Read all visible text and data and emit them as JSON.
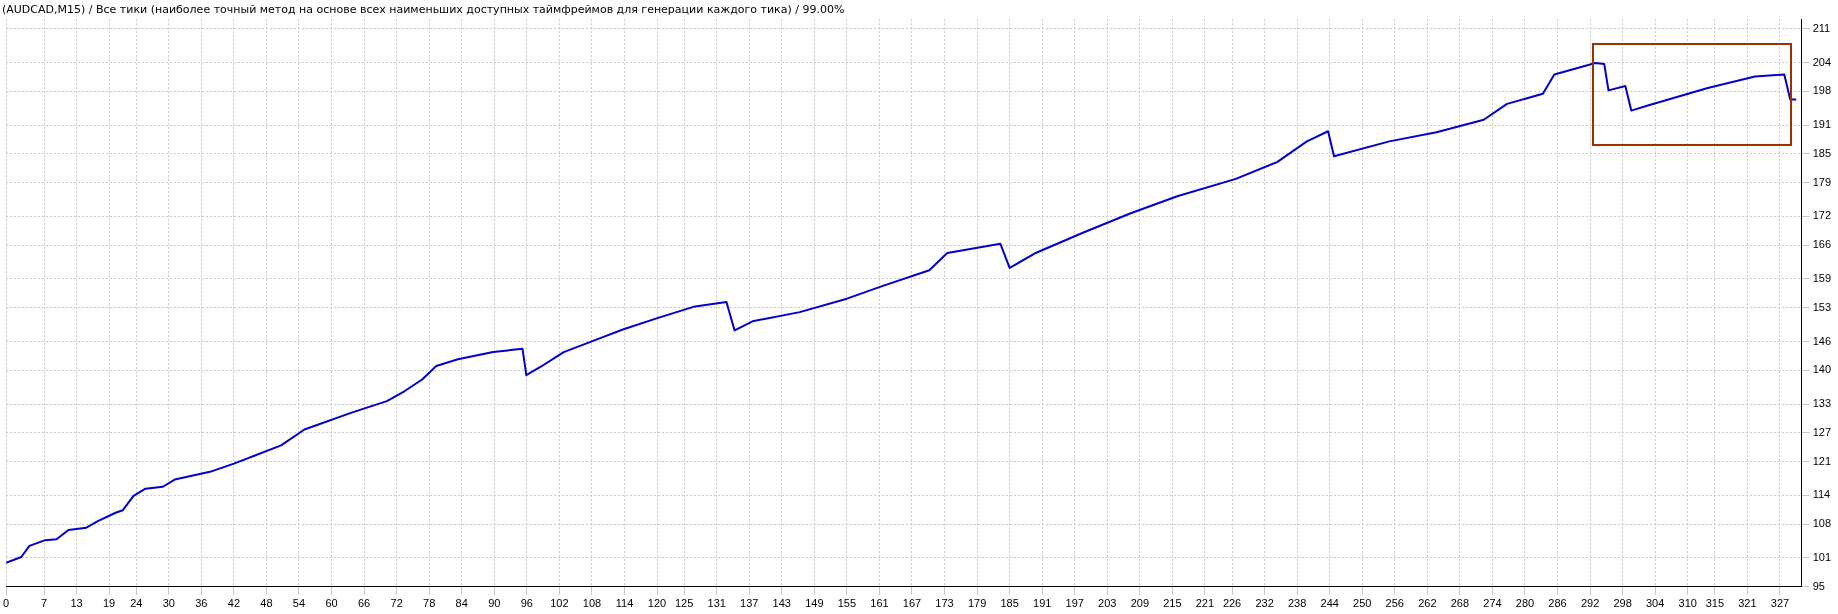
{
  "chart_data": {
    "type": "line",
    "title": "(AUDCAD,M15) / Все тики (наиболее точный метод на основе всех наименьших доступных таймфреймов для генерации каждого тика) / 99.00%",
    "series": [
      {
        "color": "#0000cc",
        "x": [
          0,
          2.8,
          4.3,
          7.2,
          9.3,
          11.5,
          14.8,
          17,
          20.2,
          21.5,
          23.5,
          25.7,
          28.9,
          31.1,
          37.6,
          42,
          50.7,
          55,
          63.7,
          70.2,
          73.5,
          76.7,
          79.3,
          83.3,
          89.8,
          95.2,
          95.9,
          98.5,
          102.8,
          109.3,
          113.7,
          120.2,
          126.7,
          132.8,
          134.3,
          137.6,
          146.3,
          155,
          161.5,
          170.2,
          173.5,
          183.3,
          185,
          189.8,
          198.5,
          207.2,
          215.9,
          226.7,
          234.3,
          239.8,
          243.7,
          244.8,
          255,
          263.7,
          272.4,
          276.7,
          283.3,
          285.4,
          293,
          294.6,
          295.4,
          298.5,
          299.6,
          302.8,
          313.7,
          322.4,
          327.8,
          328.9,
          330
        ],
        "values": [
          100,
          101.2,
          103.5,
          104.7,
          104.9,
          106.8,
          107.3,
          108.7,
          110.4,
          110.9,
          113.9,
          115.4,
          115.8,
          117.3,
          118.9,
          120.6,
          124.4,
          127.7,
          131.2,
          133.6,
          135.7,
          138.1,
          140.9,
          142.3,
          143.8,
          144.5,
          139,
          140.7,
          143.8,
          146.6,
          148.5,
          150.9,
          153.2,
          154.2,
          148.3,
          150.2,
          152.1,
          154.9,
          157.5,
          160.8,
          164.4,
          166.3,
          161.3,
          164.4,
          168.6,
          172.6,
          176.2,
          179.8,
          183.3,
          187.6,
          189.7,
          184.5,
          187.6,
          189.5,
          192.1,
          195.4,
          197.5,
          201.5,
          203.9,
          203.7,
          198.2,
          199.1,
          194,
          195.1,
          198.7,
          201.1,
          201.5,
          196.3,
          196.3
        ]
      }
    ],
    "xlim": [
      0,
      331
    ],
    "xticks": [
      0,
      7,
      13,
      19,
      24,
      30,
      36,
      42,
      48,
      54,
      60,
      66,
      72,
      78,
      84,
      90,
      96,
      102,
      108,
      114,
      120,
      125,
      131,
      137,
      143,
      149,
      155,
      161,
      167,
      173,
      179,
      185,
      191,
      197,
      203,
      209,
      215,
      221,
      226,
      232,
      238,
      244,
      250,
      256,
      262,
      268,
      274,
      280,
      286,
      292,
      298,
      304,
      310,
      315,
      321,
      327
    ],
    "ylim": [
      95,
      213
    ],
    "yticks": [
      95,
      101,
      108,
      114,
      121,
      127,
      133,
      140,
      146,
      153,
      159,
      166,
      172,
      179,
      185,
      191,
      198,
      204,
      211
    ],
    "grid": true,
    "legend": false,
    "marker": "none",
    "line_style": "solid"
  }
}
